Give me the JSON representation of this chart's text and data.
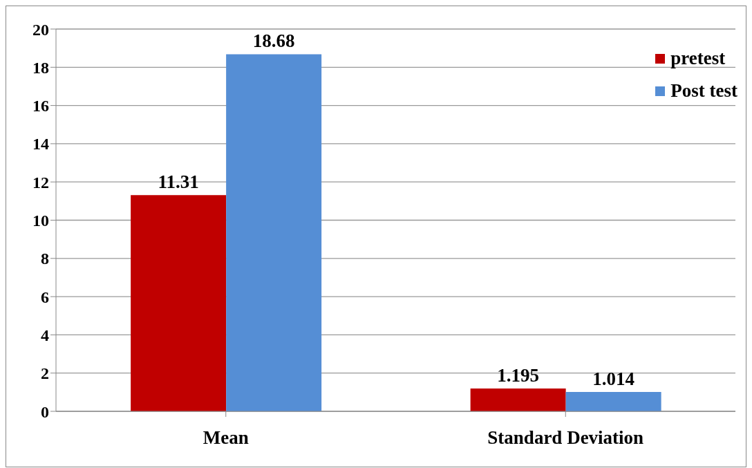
{
  "chart_data": {
    "type": "bar",
    "categories": [
      "Mean",
      "Standard Deviation"
    ],
    "series": [
      {
        "name": "pretest",
        "color": "#c00000",
        "values": [
          11.31,
          1.195
        ]
      },
      {
        "name": "Post test",
        "color": "#558ed5",
        "values": [
          18.68,
          1.014
        ]
      }
    ],
    "ylim": [
      0,
      20
    ],
    "yticks": [
      0,
      2,
      4,
      6,
      8,
      10,
      12,
      14,
      16,
      18,
      20
    ],
    "grid": "y",
    "legend": "top right",
    "data_labels": true
  }
}
